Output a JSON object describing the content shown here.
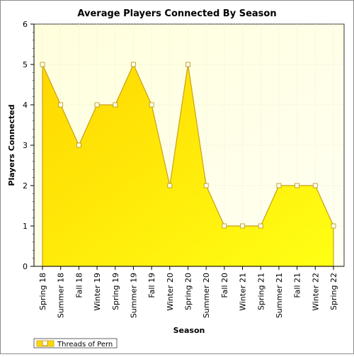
{
  "chart_data": {
    "type": "area",
    "title": "Average Players Connected By Season",
    "xlabel": "Season",
    "ylabel": "Players Connected",
    "ylim": [
      0,
      6
    ],
    "y_ticks": [
      "0",
      "1",
      "2",
      "3",
      "4",
      "5",
      "6"
    ],
    "categories": [
      "Spring 18",
      "Summer 18",
      "Fall 18",
      "Winter 19",
      "Spring 19",
      "Summer 19",
      "Fall 19",
      "Winter 20",
      "Spring 20",
      "Summer 20",
      "Fall 20",
      "Winter 21",
      "Spring 21",
      "Summer 21",
      "Fall 21",
      "Winter 22",
      "Spring 22"
    ],
    "series": [
      {
        "name": "Threads of Pern",
        "values": [
          5,
          4,
          3,
          4,
          4,
          5,
          4,
          2,
          5,
          2,
          1,
          1,
          1,
          2,
          2,
          2,
          1
        ]
      }
    ],
    "grid": true,
    "legend_position": "bottom-left",
    "colors": {
      "plot_bg_top": "#ffffdd",
      "plot_bg_bottom": "#fffff2",
      "area_top": "#ffd700",
      "area_bottom": "#ffff14",
      "line": "#caa012",
      "marker_fill": "#fffef0",
      "marker_stroke": "#b89010"
    }
  }
}
